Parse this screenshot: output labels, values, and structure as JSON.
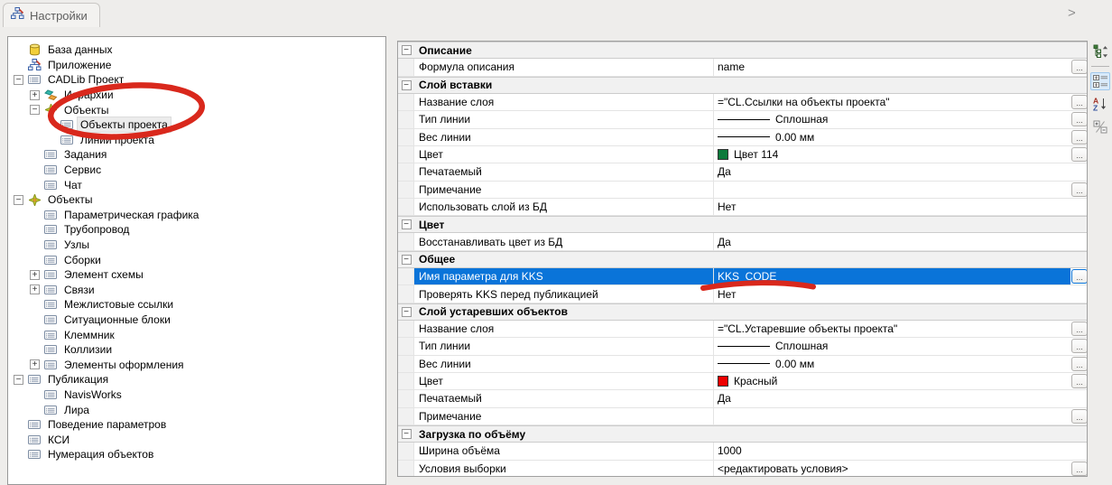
{
  "tabbar": {
    "title": "Настройки",
    "overflow_chevron": ">"
  },
  "colors": {
    "accent_selection": "#0a74d9",
    "annotation_red": "#d9281c",
    "swatch_green": "#0d7a3b",
    "swatch_red": "#ee0000"
  },
  "tree": {
    "items": [
      {
        "label": "База данных",
        "level": 0,
        "icon": "database"
      },
      {
        "label": "Приложение",
        "level": 0,
        "icon": "app"
      },
      {
        "label": "CADLib Проект",
        "level": 0,
        "icon": "list",
        "expander": "minus"
      },
      {
        "label": "Иерархии",
        "level": 1,
        "icon": "hierarchy",
        "expander": "plus"
      },
      {
        "label": "Объекты",
        "level": 1,
        "icon": "objects",
        "expander": "minus"
      },
      {
        "label": "Объекты проекта",
        "level": 2,
        "icon": "list",
        "selected": true
      },
      {
        "label": "Линии проекта",
        "level": 2,
        "icon": "list"
      },
      {
        "label": "Задания",
        "level": 1,
        "icon": "list"
      },
      {
        "label": "Сервис",
        "level": 1,
        "icon": "list"
      },
      {
        "label": "Чат",
        "level": 1,
        "icon": "list"
      },
      {
        "label": "Объекты",
        "level": 0,
        "icon": "objects",
        "expander": "minus"
      },
      {
        "label": "Параметрическая графика",
        "level": 1,
        "icon": "list"
      },
      {
        "label": "Трубопровод",
        "level": 1,
        "icon": "list"
      },
      {
        "label": "Узлы",
        "level": 1,
        "icon": "list"
      },
      {
        "label": "Сборки",
        "level": 1,
        "icon": "list"
      },
      {
        "label": "Элемент схемы",
        "level": 1,
        "icon": "list",
        "expander": "plus"
      },
      {
        "label": "Связи",
        "level": 1,
        "icon": "list",
        "expander": "plus"
      },
      {
        "label": "Межлистовые ссылки",
        "level": 1,
        "icon": "list"
      },
      {
        "label": "Ситуационные блоки",
        "level": 1,
        "icon": "list"
      },
      {
        "label": "Клеммник",
        "level": 1,
        "icon": "list"
      },
      {
        "label": "Коллизии",
        "level": 1,
        "icon": "list"
      },
      {
        "label": "Элементы оформления",
        "level": 1,
        "icon": "list",
        "expander": "plus"
      },
      {
        "label": "Публикация",
        "level": 0,
        "icon": "list",
        "expander": "minus"
      },
      {
        "label": "NavisWorks",
        "level": 1,
        "icon": "list"
      },
      {
        "label": "Лира",
        "level": 1,
        "icon": "list"
      },
      {
        "label": "Поведение параметров",
        "level": 0,
        "icon": "list"
      },
      {
        "label": "КСИ",
        "level": 0,
        "icon": "list"
      },
      {
        "label": "Нумерация объектов",
        "level": 0,
        "icon": "list"
      }
    ]
  },
  "grid": {
    "rows": [
      {
        "type": "section",
        "label": "Описание"
      },
      {
        "type": "prop",
        "label": "Формула описания",
        "value": "name",
        "btn": true
      },
      {
        "type": "section",
        "label": "Слой вставки"
      },
      {
        "type": "prop",
        "label": "Название слоя",
        "value": "=\"CL.Ссылки на объекты проекта\"",
        "btn": true
      },
      {
        "type": "prop",
        "label": "Тип линии",
        "value": "Сплошная",
        "line": true,
        "btn": true
      },
      {
        "type": "prop",
        "label": "Вес линии",
        "value": "0.00 мм",
        "line": true,
        "btn": true
      },
      {
        "type": "prop",
        "label": "Цвет",
        "value": "Цвет 114",
        "swatch": "green",
        "btn": true
      },
      {
        "type": "prop",
        "label": "Печатаемый",
        "value": "Да"
      },
      {
        "type": "prop",
        "label": "Примечание",
        "value": "",
        "btn": true
      },
      {
        "type": "prop",
        "label": "Использовать слой из БД",
        "value": "Нет"
      },
      {
        "type": "section",
        "label": "Цвет"
      },
      {
        "type": "prop",
        "label": "Восстанавливать цвет из БД",
        "value": "Да"
      },
      {
        "type": "section",
        "label": "Общее"
      },
      {
        "type": "prop",
        "label": "Имя параметра для KKS",
        "value": "KKS_CODE",
        "btn": true,
        "selected": true
      },
      {
        "type": "prop",
        "label": "Проверять KKS перед публикацией",
        "value": "Нет"
      },
      {
        "type": "section",
        "label": "Слой устаревших объектов"
      },
      {
        "type": "prop",
        "label": "Название слоя",
        "value": "=\"CL.Устаревшие объекты проекта\"",
        "btn": true
      },
      {
        "type": "prop",
        "label": "Тип линии",
        "value": "Сплошная",
        "line": true,
        "btn": true
      },
      {
        "type": "prop",
        "label": "Вес линии",
        "value": "0.00 мм",
        "line": true,
        "btn": true
      },
      {
        "type": "prop",
        "label": "Цвет",
        "value": "Красный",
        "swatch": "red",
        "btn": true
      },
      {
        "type": "prop",
        "label": "Печатаемый",
        "value": "Да"
      },
      {
        "type": "prop",
        "label": "Примечание",
        "value": "",
        "btn": true
      },
      {
        "type": "section",
        "label": "Загрузка по объёму"
      },
      {
        "type": "prop",
        "label": "Ширина объёма",
        "value": "1000"
      },
      {
        "type": "prop",
        "label": "Условия выборки",
        "value": "<редактировать условия>",
        "btn": true
      }
    ]
  },
  "side_toolbar": {
    "buttons": [
      {
        "icon": "hierarchy-sort-icon",
        "active": false
      },
      {
        "icon": "categorized-view-icon",
        "active": true
      },
      {
        "icon": "alphabetical-sort-icon",
        "active": false
      },
      {
        "icon": "expand-collapse-icon",
        "active": false
      }
    ]
  },
  "annotations": {
    "circle_target": "Объекты проекта",
    "underline_target": "KKS_CODE"
  }
}
